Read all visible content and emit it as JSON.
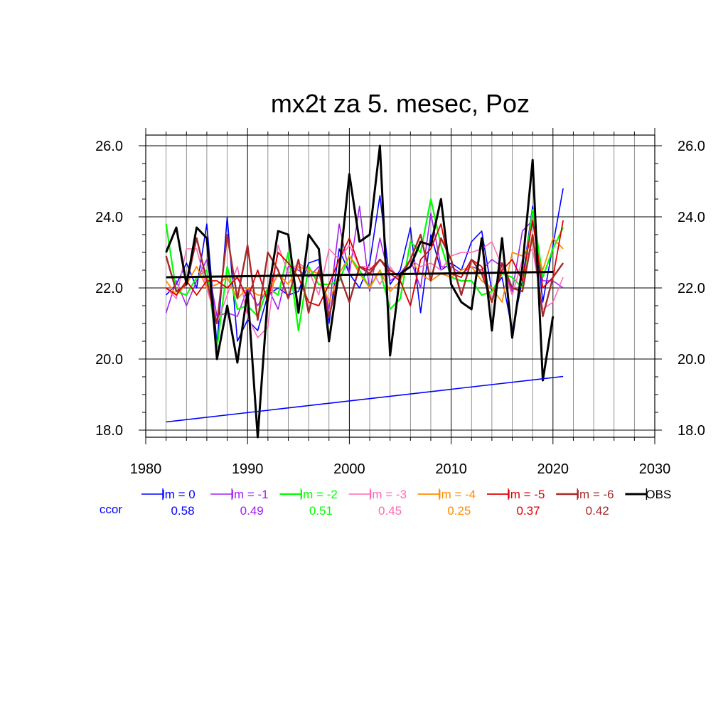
{
  "chart_data": {
    "type": "line",
    "title": "mx2t za 5. mesec, Poz",
    "xlabel": "",
    "ylabel": "",
    "xlim": [
      1980,
      2030
    ],
    "ylim": [
      17.8,
      26.3
    ],
    "x_ticks": [
      1980,
      1990,
      2000,
      2010,
      2020,
      2030
    ],
    "x_tick_labels": [
      "1980",
      "1990",
      "2000",
      "2010",
      "2020",
      "2030"
    ],
    "y_ticks": [
      18,
      20,
      22,
      24,
      26
    ],
    "y_tick_labels": [
      "18.0",
      "20.0",
      "22.0",
      "24.0",
      "26.0"
    ],
    "grid": true,
    "series": [
      {
        "name": "lm = 0",
        "color": "#0000ff",
        "width": 1.6,
        "ccor": "0.58",
        "x": [
          1982,
          1983,
          1984,
          1985,
          1986,
          1987,
          1988,
          1989,
          1990,
          1991,
          1992,
          1993,
          1994,
          1995,
          1996,
          1997,
          1998,
          1999,
          2000,
          2001,
          2002,
          2003,
          2004,
          2005,
          2006,
          2007,
          2008,
          2009,
          2010,
          2011,
          2012,
          2013,
          2014,
          2015,
          2016,
          2017,
          2018,
          2019,
          2020,
          2021
        ],
        "values": [
          21.8,
          22.1,
          22.7,
          22.0,
          23.8,
          20.4,
          24.0,
          20.5,
          21.1,
          20.8,
          21.8,
          22.0,
          21.8,
          21.9,
          22.7,
          22.8,
          21.0,
          23.1,
          22.4,
          22.0,
          22.7,
          24.6,
          22.1,
          22.5,
          23.7,
          21.3,
          23.5,
          22.5,
          22.7,
          22.5,
          23.3,
          23.6,
          21.9,
          22.3,
          20.8,
          22.2,
          24.3,
          21.6,
          23.2,
          24.8
        ]
      },
      {
        "name": "lm = -1",
        "color": "#a020f0",
        "width": 1.6,
        "ccor": "0.49",
        "x": [
          1982,
          1983,
          1984,
          1985,
          1986,
          1987,
          1988,
          1989,
          1990,
          1991,
          1992,
          1993,
          1994,
          1995,
          1996,
          1997,
          1998,
          1999,
          2000,
          2001,
          2002,
          2003,
          2004,
          2005,
          2006,
          2007,
          2008,
          2009,
          2010,
          2011,
          2012,
          2013,
          2014,
          2015,
          2016,
          2017,
          2018,
          2019,
          2020,
          2021
        ],
        "values": [
          21.3,
          22.2,
          21.5,
          22.2,
          22.8,
          21.2,
          21.3,
          21.2,
          22.0,
          21.5,
          22.0,
          21.4,
          22.6,
          22.5,
          22.3,
          22.6,
          21.4,
          23.8,
          22.4,
          24.3,
          21.9,
          23.4,
          22.2,
          22.4,
          22.8,
          22.0,
          24.1,
          22.6,
          22.6,
          22.4,
          22.6,
          22.5,
          22.8,
          22.6,
          21.9,
          23.6,
          23.9,
          22.2,
          22.2,
          22.0
        ]
      },
      {
        "name": "lm = -2",
        "color": "#00ff00",
        "width": 2.2,
        "ccor": "0.51",
        "x": [
          1982,
          1983,
          1984,
          1985,
          1986,
          1987,
          1988,
          1989,
          1990,
          1991,
          1992,
          1993,
          1994,
          1995,
          1996,
          1997,
          1998,
          1999,
          2000,
          2001,
          2002,
          2003,
          2004,
          2005,
          2006,
          2007,
          2008,
          2009,
          2010,
          2011,
          2012,
          2013,
          2014,
          2015,
          2016,
          2017,
          2018,
          2019,
          2020,
          2021
        ],
        "values": [
          23.8,
          21.9,
          21.8,
          22.3,
          22.5,
          20.3,
          22.6,
          21.4,
          21.5,
          21.2,
          22.0,
          21.8,
          23.0,
          20.8,
          22.6,
          22.1,
          22.1,
          22.2,
          22.9,
          22.5,
          22.0,
          22.5,
          21.4,
          21.7,
          23.3,
          23.0,
          24.5,
          23.2,
          22.3,
          22.2,
          22.2,
          21.8,
          21.9,
          22.4,
          22.3,
          22.0,
          24.2,
          22.3,
          23.1,
          23.7
        ]
      },
      {
        "name": "lm = -3",
        "color": "#ff69b4",
        "width": 1.6,
        "ccor": "0.45",
        "x": [
          1982,
          1983,
          1984,
          1985,
          1986,
          1987,
          1988,
          1989,
          1990,
          1991,
          1992,
          1993,
          1994,
          1995,
          1996,
          1997,
          1998,
          1999,
          2000,
          2001,
          2002,
          2003,
          2004,
          2005,
          2006,
          2007,
          2008,
          2009,
          2010,
          2011,
          2012,
          2013,
          2014,
          2015,
          2016,
          2017,
          2018,
          2019,
          2020,
          2021
        ],
        "values": [
          22.0,
          21.7,
          23.1,
          23.1,
          22.0,
          21.0,
          21.8,
          22.6,
          21.2,
          20.6,
          20.9,
          23.2,
          22.4,
          22.7,
          22.5,
          21.8,
          23.1,
          22.8,
          23.2,
          22.6,
          22.6,
          22.1,
          22.6,
          22.2,
          22.8,
          22.6,
          22.7,
          22.5,
          22.9,
          23.0,
          23.0,
          23.1,
          23.3,
          22.6,
          21.8,
          22.8,
          23.1,
          21.4,
          21.6,
          22.3
        ]
      },
      {
        "name": "lm = -4",
        "color": "#ff8c00",
        "width": 1.8,
        "ccor": "0.25",
        "x": [
          1982,
          1983,
          1984,
          1985,
          1986,
          1987,
          1988,
          1989,
          1990,
          1991,
          1992,
          1993,
          1994,
          1995,
          1996,
          1997,
          1998,
          1999,
          2000,
          2001,
          2002,
          2003,
          2004,
          2005,
          2006,
          2007,
          2008,
          2009,
          2010,
          2011,
          2012,
          2013,
          2014,
          2015,
          2016,
          2017,
          2018,
          2019,
          2020,
          2021
        ],
        "values": [
          22.2,
          21.8,
          22.1,
          22.6,
          22.0,
          22.1,
          22.3,
          21.7,
          22.0,
          21.8,
          21.8,
          22.4,
          22.1,
          22.6,
          22.5,
          22.4,
          21.6,
          22.4,
          22.9,
          22.4,
          22.0,
          22.5,
          21.9,
          22.2,
          22.8,
          22.4,
          22.2,
          22.4,
          22.3,
          22.5,
          22.6,
          22.2,
          22.0,
          21.6,
          23.0,
          22.9,
          23.3,
          22.5,
          23.4,
          23.1
        ]
      },
      {
        "name": "lm = -5",
        "color": "#e00000",
        "width": 1.8,
        "ccor": "0.37",
        "x": [
          1982,
          1983,
          1984,
          1985,
          1986,
          1987,
          1988,
          1989,
          1990,
          1991,
          1992,
          1993,
          1994,
          1995,
          1996,
          1997,
          1998,
          1999,
          2000,
          2001,
          2002,
          2003,
          2004,
          2005,
          2006,
          2007,
          2008,
          2009,
          2010,
          2011,
          2012,
          2013,
          2014,
          2015,
          2016,
          2017,
          2018,
          2019,
          2020,
          2021
        ],
        "values": [
          22.0,
          21.8,
          22.2,
          21.8,
          22.2,
          22.2,
          22.0,
          22.3,
          21.7,
          22.5,
          21.6,
          23.0,
          22.7,
          22.3,
          21.6,
          21.5,
          22.1,
          22.8,
          23.4,
          22.6,
          22.5,
          22.8,
          22.4,
          22.2,
          21.5,
          22.8,
          23.1,
          23.8,
          22.4,
          22.3,
          22.8,
          22.6,
          21.6,
          22.5,
          22.8,
          22.2,
          23.9,
          22.0,
          22.3,
          23.9
        ]
      },
      {
        "name": "lm = -6",
        "color": "#a52a2a",
        "width": 2.4,
        "ccor": "0.42",
        "x": [
          1982,
          1983,
          1984,
          1985,
          1986,
          1987,
          1988,
          1989,
          1990,
          1991,
          1992,
          1993,
          1994,
          1995,
          1996,
          1997,
          1998,
          1999,
          2000,
          2001,
          2002,
          2003,
          2004,
          2005,
          2006,
          2007,
          2008,
          2009,
          2010,
          2011,
          2012,
          2013,
          2014,
          2015,
          2016,
          2017,
          2018,
          2019,
          2020,
          2021
        ],
        "values": [
          22.9,
          21.9,
          22.1,
          23.4,
          22.2,
          21.0,
          23.5,
          21.7,
          23.2,
          21.1,
          23.0,
          22.5,
          21.7,
          22.8,
          21.3,
          22.5,
          21.2,
          22.4,
          21.6,
          22.6,
          22.4,
          22.8,
          22.5,
          22.3,
          22.8,
          23.5,
          22.2,
          23.4,
          22.8,
          21.8,
          22.8,
          22.4,
          21.6,
          22.7,
          22.0,
          21.9,
          23.5,
          21.2,
          22.3,
          22.7
        ]
      },
      {
        "name": "OBS",
        "color": "#000000",
        "width": 3.0,
        "ccor": "",
        "x": [
          1982,
          1983,
          1984,
          1985,
          1986,
          1987,
          1988,
          1989,
          1990,
          1991,
          1992,
          1993,
          1994,
          1995,
          1996,
          1997,
          1998,
          1999,
          2000,
          2001,
          2002,
          2003,
          2004,
          2005,
          2006,
          2007,
          2008,
          2009,
          2010,
          2011,
          2012,
          2013,
          2014,
          2015,
          2016,
          2017,
          2018,
          2019,
          2020
        ],
        "values": [
          23.0,
          23.7,
          22.1,
          23.7,
          23.4,
          20.0,
          21.5,
          19.9,
          21.9,
          17.8,
          21.8,
          23.6,
          23.5,
          21.3,
          23.5,
          23.1,
          20.5,
          22.5,
          25.2,
          23.3,
          23.5,
          26.0,
          20.1,
          22.4,
          22.6,
          23.3,
          23.2,
          24.5,
          22.1,
          21.6,
          21.4,
          23.4,
          20.8,
          23.4,
          20.6,
          22.6,
          25.6,
          19.4,
          21.2
        ]
      }
    ],
    "trend_lines": [
      {
        "color": "#000000",
        "width": 3.0,
        "x": [
          1982,
          2020
        ],
        "values": [
          22.3,
          22.45
        ]
      },
      {
        "color": "#0000ff",
        "width": 1.6,
        "x": [
          1982,
          2021
        ],
        "values": [
          18.23,
          19.51
        ]
      }
    ],
    "ccor_label": "ccor",
    "ccor_color": "#0000ff",
    "legend_placement": "bottom"
  }
}
